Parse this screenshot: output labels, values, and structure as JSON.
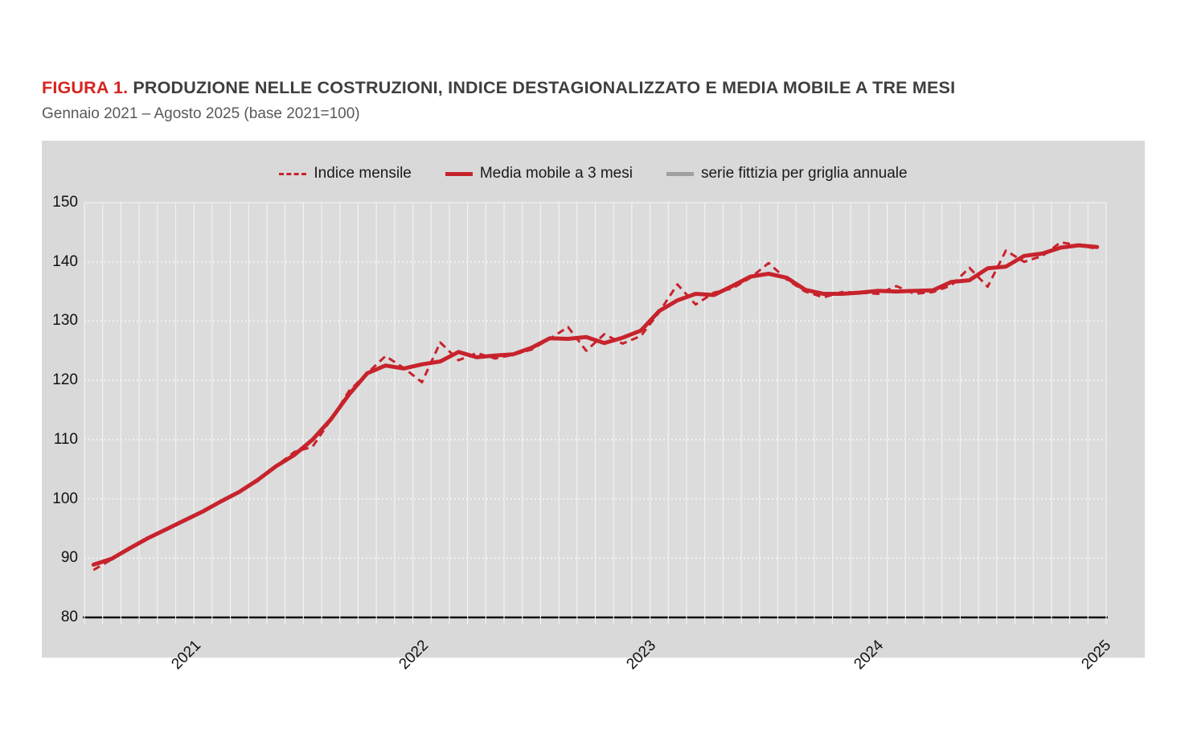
{
  "figure": {
    "label": "FIGURA 1.",
    "title": "PRODUZIONE NELLE COSTRUZIONI, INDICE DESTAGIONALIZZATO E MEDIA MOBILE A TRE MESI",
    "subtitle": "Gennaio 2021 – Agosto 2025 (base 2021=100)"
  },
  "colors": {
    "title_red": "#d7231f",
    "title_gray": "#3f3f3f",
    "subtitle_gray": "#595959",
    "panel_bg": "#d9d9d9",
    "plot_bg": "#dcdcdc",
    "grid_white": "#f2f2f2",
    "axis_black": "#111111",
    "series_red": "#c7232c",
    "series_gray": "#a0a0a0"
  },
  "legend": [
    {
      "label": "Indice mensile",
      "swatch": "dashed"
    },
    {
      "label": "Media mobile a 3 mesi",
      "swatch": "solid"
    },
    {
      "label": "serie fittizia per griglia annuale",
      "swatch": "gray"
    }
  ],
  "chart_data": {
    "type": "line",
    "title": "Produzione nelle costruzioni, indice destagionalizzato e media mobile a tre mesi",
    "xlabel": "",
    "ylabel": "",
    "ylim": [
      80,
      150
    ],
    "y_ticks": [
      150,
      140,
      130,
      120,
      110,
      100,
      90,
      80
    ],
    "x_year_labels": [
      "2021",
      "2022",
      "2023",
      "2024",
      "2025"
    ],
    "grid": "monthly vertical lines, dotted horizontal lines every 10",
    "legend_position": "top center",
    "x": [
      "2021-01",
      "2021-02",
      "2021-03",
      "2021-04",
      "2021-05",
      "2021-06",
      "2021-07",
      "2021-08",
      "2021-09",
      "2021-10",
      "2021-11",
      "2021-12",
      "2022-01",
      "2022-02",
      "2022-03",
      "2022-04",
      "2022-05",
      "2022-06",
      "2022-07",
      "2022-08",
      "2022-09",
      "2022-10",
      "2022-11",
      "2022-12",
      "2023-01",
      "2023-02",
      "2023-03",
      "2023-04",
      "2023-05",
      "2023-06",
      "2023-07",
      "2023-08",
      "2023-09",
      "2023-10",
      "2023-11",
      "2023-12",
      "2024-01",
      "2024-02",
      "2024-03",
      "2024-04",
      "2024-05",
      "2024-06",
      "2024-07",
      "2024-08",
      "2024-09",
      "2024-10",
      "2024-11",
      "2024-12",
      "2025-01",
      "2025-02",
      "2025-03",
      "2025-04",
      "2025-05",
      "2025-06",
      "2025-07",
      "2025-08"
    ],
    "series": [
      {
        "name": "Indice mensile",
        "style": "dashed",
        "color": "#c7232c",
        "values": [
          88.0,
          89.8,
          91.8,
          93.5,
          94.8,
          96.3,
          98.0,
          99.5,
          101.2,
          103.0,
          105.5,
          107.9,
          108.8,
          113.3,
          118.2,
          121.2,
          124.1,
          122.1,
          119.7,
          126.4,
          123.4,
          124.6,
          123.7,
          124.3,
          125.2,
          127.0,
          129.0,
          125.0,
          127.8,
          126.2,
          127.5,
          131.5,
          136.2,
          132.8,
          134.8,
          135.5,
          137.3,
          139.8,
          137.0,
          135.0,
          134.0,
          134.9,
          134.8,
          134.6,
          135.9,
          134.6,
          134.9,
          136.0,
          139.0,
          135.8,
          141.9,
          140.0,
          141.0,
          143.3,
          142.8,
          142.2
        ]
      },
      {
        "name": "Media mobile a 3 mesi",
        "style": "solid",
        "color": "#c7232c",
        "values": [
          88.9,
          89.9,
          91.7,
          93.4,
          94.9,
          96.4,
          97.9,
          99.6,
          101.2,
          103.2,
          105.5,
          107.4,
          110.0,
          113.4,
          117.6,
          121.2,
          122.5,
          122.0,
          122.7,
          123.2,
          124.8,
          123.9,
          124.2,
          124.4,
          125.5,
          127.1,
          127.0,
          127.3,
          126.3,
          127.2,
          128.4,
          131.7,
          133.5,
          134.6,
          134.4,
          135.9,
          137.5,
          138.0,
          137.3,
          135.3,
          134.6,
          134.6,
          134.8,
          135.1,
          135.0,
          135.1,
          135.2,
          136.6,
          136.9,
          138.9,
          139.2,
          141.0,
          141.4,
          142.4,
          142.8,
          142.5
        ]
      },
      {
        "name": "serie fittizia per griglia annuale",
        "style": "solid",
        "color": "#a0a0a0",
        "values": []
      }
    ]
  }
}
